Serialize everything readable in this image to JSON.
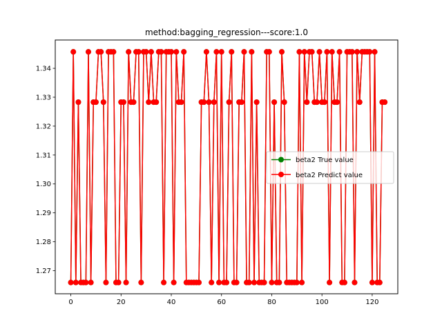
{
  "chart_data": {
    "type": "line",
    "title": "method:bagging_regression---score:1.0",
    "xlabel": "",
    "ylabel": "",
    "xlim": [
      -6.2,
      130.2
    ],
    "ylim": [
      1.262,
      1.3498
    ],
    "xticks": [
      0,
      20,
      40,
      60,
      80,
      100,
      120
    ],
    "yticks": [
      1.27,
      1.28,
      1.29,
      1.3,
      1.31,
      1.32,
      1.33,
      1.34
    ],
    "ytick_labels": [
      "1.27",
      "1.28",
      "1.29",
      "1.30",
      "1.31",
      "1.32",
      "1.33",
      "1.34"
    ],
    "legend_position": "center-right",
    "levels": {
      "L": 1.2659,
      "M": 1.3283,
      "H": 1.3457
    },
    "pattern": "LHLMLLLHLMMHHMLHHHLLMMLHMMHHLHHMHMMHHLHHHLHMMHLLLLLLMMHMLMHLHLLMHLLMMHLLHLMLLLHHLMLLHMLLLLLHLHMHHMMHMMHLHMMHLLHHHLHMHHHHLHLLMM",
    "series": [
      {
        "name": "beta2 True value",
        "color": "#008000",
        "marker": "circle"
      },
      {
        "name": "beta2 Predict value",
        "color": "#ff0000",
        "marker": "circle"
      }
    ]
  }
}
